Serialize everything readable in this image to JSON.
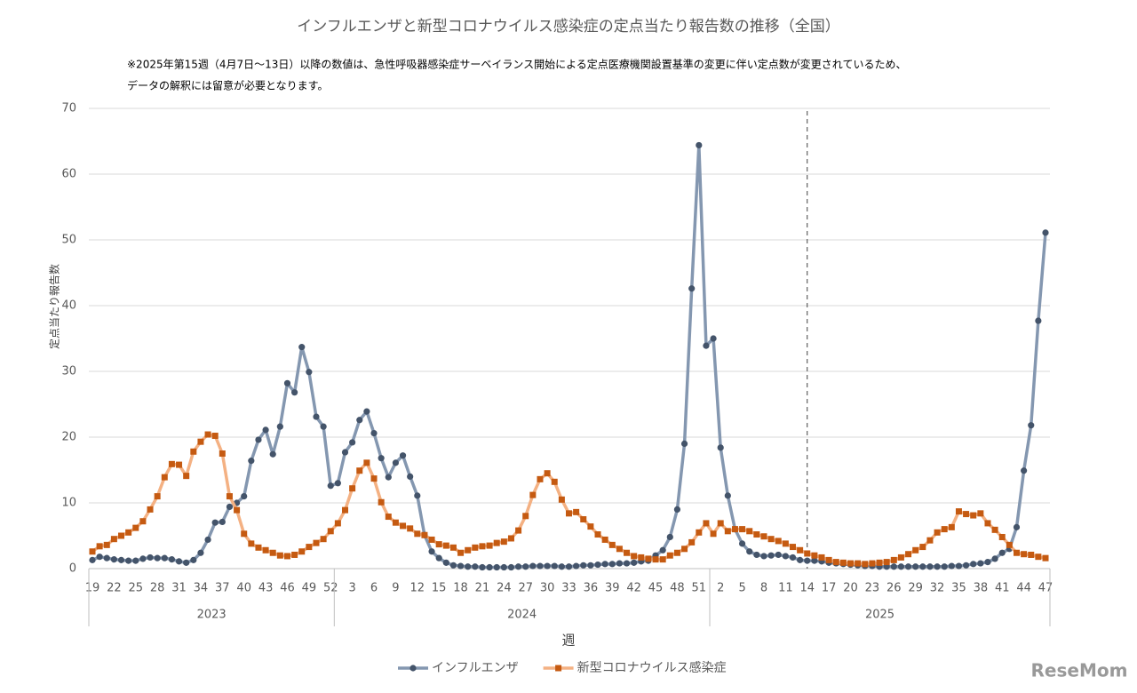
{
  "chart_data": {
    "type": "line",
    "title": "インフルエンザと新型コロナウイルス感染症の定点当たり報告数の推移（全国）",
    "note_lines": [
      "※2025年第15週（4月7日～13日）以降の数値は、急性呼吸器感染症サーベイランス開始による定点医療機関設置基準の変更に伴い定点数が変更されているため、",
      "データの解釈には留意が必要となります。"
    ],
    "x_label": "週",
    "y_label": "定点当たり報告数",
    "watermark": "ReseMom",
    "categories": [
      "19",
      null,
      null,
      "22",
      null,
      null,
      "25",
      null,
      null,
      "28",
      null,
      null,
      "31",
      null,
      null,
      "34",
      null,
      null,
      "37",
      null,
      null,
      "40",
      null,
      null,
      "43",
      null,
      null,
      "46",
      null,
      null,
      "49",
      null,
      null,
      "52",
      null,
      null,
      "3",
      null,
      null,
      "6",
      null,
      null,
      "9",
      null,
      null,
      "12",
      null,
      null,
      "15",
      null,
      null,
      "18",
      null,
      null,
      "21",
      null,
      null,
      "24",
      null,
      null,
      "27",
      null,
      null,
      "30",
      null,
      null,
      "33",
      null,
      null,
      "36",
      null,
      null,
      "39",
      null,
      null,
      "42",
      null,
      null,
      "45",
      null,
      null,
      "48",
      null,
      null,
      "51",
      null,
      null,
      "2",
      null,
      null,
      "5",
      null,
      null,
      "8",
      null,
      null,
      "11",
      null,
      null,
      "14",
      null,
      null,
      "17",
      null,
      null,
      "20",
      null,
      null,
      "23",
      null,
      null,
      "26",
      null,
      null,
      "29",
      null,
      null,
      "32",
      null,
      null,
      "35",
      null,
      null,
      "38",
      null,
      null,
      "41",
      null,
      null,
      "44",
      null,
      null,
      "47"
    ],
    "x_groups": [
      {
        "label": "2023",
        "count": 34
      },
      {
        "label": "2024",
        "count": 52
      },
      {
        "label": "2025",
        "count": 47
      }
    ],
    "vline_index": 99,
    "series": [
      {
        "name": "インフルエンザ",
        "color": "#8497b0",
        "marker_color": "#44546a",
        "marker": "circle",
        "values": [
          1.3,
          1.8,
          1.6,
          1.4,
          1.3,
          1.2,
          1.2,
          1.5,
          1.7,
          1.6,
          1.6,
          1.4,
          1.1,
          0.9,
          1.3,
          2.4,
          4.4,
          7.0,
          7.1,
          9.4,
          10.0,
          11.0,
          16.4,
          19.6,
          21.1,
          17.4,
          21.6,
          28.2,
          26.8,
          33.7,
          29.9,
          23.1,
          21.6,
          12.6,
          13.0,
          17.7,
          19.2,
          22.6,
          23.9,
          20.6,
          16.8,
          13.9,
          16.1,
          17.2,
          14.0,
          11.1,
          5.1,
          2.6,
          1.6,
          0.9,
          0.5,
          0.4,
          0.3,
          0.3,
          0.2,
          0.2,
          0.2,
          0.2,
          0.2,
          0.3,
          0.3,
          0.4,
          0.4,
          0.4,
          0.4,
          0.3,
          0.3,
          0.4,
          0.5,
          0.5,
          0.6,
          0.7,
          0.7,
          0.8,
          0.8,
          0.9,
          1.1,
          1.2,
          2.0,
          2.8,
          4.8,
          9.0,
          19.0,
          42.6,
          64.4,
          33.9,
          35.0,
          18.4,
          11.1,
          6.0,
          3.8,
          2.6,
          2.1,
          1.9,
          2.0,
          2.1,
          1.9,
          1.7,
          1.3,
          1.2,
          1.2,
          1.1,
          0.9,
          0.8,
          0.7,
          0.6,
          0.5,
          0.4,
          0.4,
          0.3,
          0.3,
          0.3,
          0.3,
          0.3,
          0.3,
          0.3,
          0.3,
          0.3,
          0.3,
          0.4,
          0.4,
          0.5,
          0.7,
          0.8,
          1.0,
          1.5,
          2.4,
          3.0,
          6.3,
          14.9,
          21.8,
          37.7,
          51.1
        ]
      },
      {
        "name": "新型コロナウイルス感染症",
        "color": "#f4b183",
        "marker_color": "#c55a11",
        "marker": "square",
        "values": [
          2.6,
          3.4,
          3.6,
          4.5,
          5.0,
          5.5,
          6.2,
          7.2,
          9.0,
          11.0,
          13.9,
          15.9,
          15.8,
          14.1,
          17.8,
          19.3,
          20.4,
          20.2,
          17.5,
          11.0,
          8.9,
          5.3,
          3.8,
          3.2,
          2.8,
          2.4,
          2.0,
          1.9,
          2.1,
          2.6,
          3.3,
          3.9,
          4.5,
          5.7,
          6.9,
          8.9,
          12.2,
          14.9,
          16.1,
          13.7,
          10.1,
          7.9,
          7.0,
          6.5,
          6.1,
          5.3,
          5.1,
          4.4,
          3.7,
          3.5,
          3.2,
          2.4,
          2.8,
          3.2,
          3.4,
          3.5,
          3.9,
          4.1,
          4.6,
          5.8,
          8.0,
          11.2,
          13.6,
          14.5,
          13.2,
          10.5,
          8.4,
          8.6,
          7.5,
          6.4,
          5.2,
          4.4,
          3.6,
          3.0,
          2.4,
          1.9,
          1.7,
          1.5,
          1.4,
          1.4,
          2.0,
          2.4,
          3.0,
          4.0,
          5.5,
          6.9,
          5.3,
          6.9,
          5.7,
          6.0,
          6.0,
          5.7,
          5.2,
          4.9,
          4.5,
          4.2,
          3.8,
          3.3,
          2.8,
          2.3,
          2.0,
          1.7,
          1.3,
          1.0,
          0.9,
          0.8,
          0.8,
          0.7,
          0.8,
          0.9,
          1.0,
          1.3,
          1.7,
          2.2,
          2.8,
          3.3,
          4.3,
          5.5,
          6.0,
          6.3,
          8.7,
          8.3,
          8.1,
          8.4,
          6.9,
          5.9,
          4.8,
          3.6,
          2.4,
          2.2,
          2.1,
          1.8,
          1.6
        ]
      }
    ],
    "ylim": [
      0,
      70
    ],
    "yticks": [
      0,
      10,
      20,
      30,
      40,
      50,
      60,
      70
    ],
    "grid": true,
    "legend": "bottom"
  }
}
